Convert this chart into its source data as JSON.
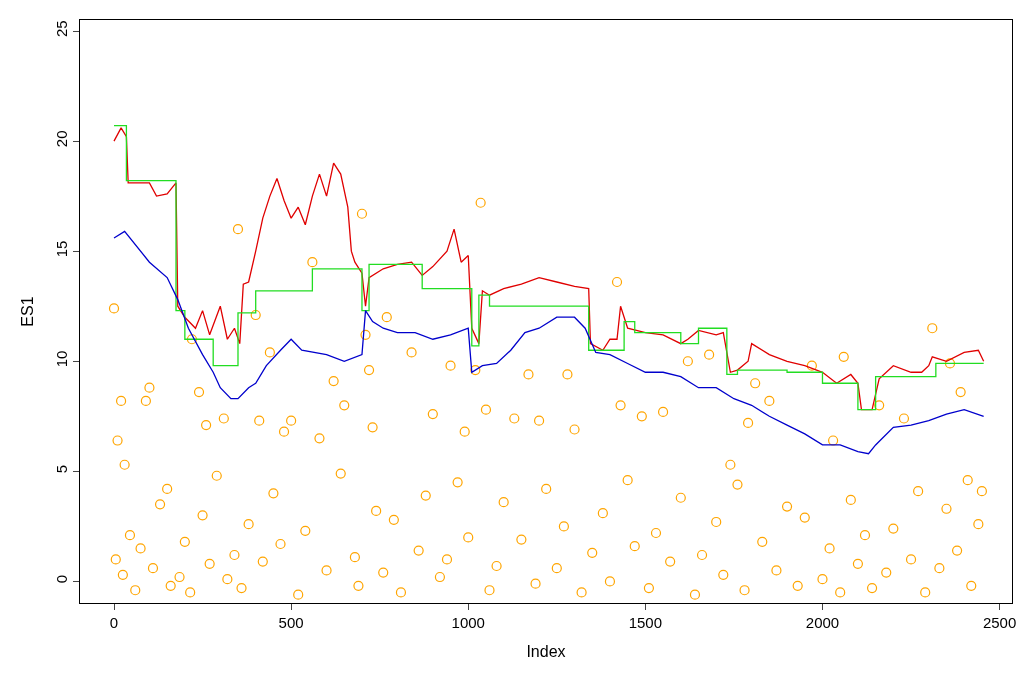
{
  "chart_data": {
    "type": "line",
    "xlabel": "Index",
    "ylabel": "ES1",
    "xlim": [
      -96,
      2535
    ],
    "ylim": [
      -0.98,
      25.5
    ],
    "xticks": [
      0,
      500,
      1000,
      1500,
      2000,
      2500
    ],
    "yticks": [
      0,
      5,
      10,
      15,
      20,
      25
    ],
    "legend": false,
    "series": [
      {
        "type": "scatter",
        "marker": "circle",
        "color": "#ffa500",
        "x": [
          0,
          10,
          20,
          30,
          90,
          100,
          150,
          220,
          240,
          260,
          310,
          350,
          400,
          410,
          440,
          480,
          500,
          560,
          580,
          620,
          650,
          700,
          710,
          720,
          730,
          770,
          840,
          900,
          950,
          990,
          1020,
          1035,
          1050,
          1130,
          1170,
          1200,
          1280,
          1300,
          1420,
          1430,
          1490,
          1550,
          1620,
          1680,
          1740,
          1790,
          1810,
          1850,
          1970,
          2030,
          2060,
          2160,
          2230,
          2310,
          2360,
          2390,
          2410,
          2450,
          5,
          25,
          45,
          60,
          75,
          110,
          130,
          160,
          185,
          200,
          215,
          250,
          270,
          290,
          320,
          340,
          360,
          380,
          420,
          450,
          470,
          520,
          540,
          600,
          640,
          680,
          690,
          740,
          760,
          790,
          810,
          860,
          880,
          920,
          940,
          970,
          1000,
          1060,
          1080,
          1100,
          1150,
          1190,
          1220,
          1250,
          1270,
          1320,
          1350,
          1380,
          1400,
          1450,
          1470,
          1510,
          1530,
          1570,
          1600,
          1640,
          1660,
          1700,
          1720,
          1760,
          1780,
          1830,
          1870,
          1900,
          1930,
          1950,
          2000,
          2020,
          2050,
          2080,
          2100,
          2120,
          2140,
          2180,
          2200,
          2250,
          2270,
          2290,
          2330,
          2350,
          2380,
          2420,
          2440
        ],
        "values": [
          12.4,
          6.4,
          8.2,
          5.3,
          8.2,
          8.8,
          4.2,
          11.0,
          8.6,
          7.1,
          7.4,
          16.0,
          12.1,
          7.3,
          10.4,
          6.8,
          7.3,
          14.5,
          6.5,
          9.1,
          8.0,
          16.7,
          11.2,
          9.6,
          7.0,
          12.0,
          10.4,
          7.6,
          9.8,
          6.8,
          9.6,
          17.2,
          7.8,
          7.4,
          9.4,
          7.3,
          9.4,
          6.9,
          13.6,
          8.0,
          7.5,
          7.7,
          10.0,
          10.3,
          5.3,
          7.2,
          9.0,
          8.2,
          9.8,
          6.4,
          10.2,
          8.0,
          7.4,
          11.5,
          9.9,
          8.6,
          4.6,
          4.1,
          1.0,
          0.3,
          2.1,
          -0.4,
          1.5,
          0.6,
          3.5,
          -0.2,
          0.2,
          1.8,
          -0.5,
          3.0,
          0.8,
          4.8,
          0.1,
          1.2,
          -0.3,
          2.6,
          0.9,
          4.0,
          1.7,
          -0.6,
          2.3,
          0.5,
          4.9,
          1.1,
          -0.2,
          3.2,
          0.4,
          2.8,
          -0.5,
          1.4,
          3.9,
          0.2,
          1.0,
          4.5,
          2.0,
          -0.4,
          0.7,
          3.6,
          1.9,
          -0.1,
          4.2,
          0.6,
          2.5,
          -0.5,
          1.3,
          3.1,
          0.0,
          4.6,
          1.6,
          -0.3,
          2.2,
          0.9,
          3.8,
          -0.6,
          1.2,
          2.7,
          0.3,
          4.4,
          -0.4,
          1.8,
          0.5,
          3.4,
          -0.2,
          2.9,
          0.1,
          1.5,
          -0.5,
          3.7,
          0.8,
          2.1,
          -0.3,
          0.4,
          2.4,
          1.0,
          4.1,
          -0.5,
          0.6,
          3.3,
          1.4,
          -0.2,
          2.6
        ]
      },
      {
        "color": "#e00000",
        "x": [
          0,
          20,
          35,
          40,
          100,
          120,
          150,
          175,
          180,
          200,
          230,
          250,
          270,
          300,
          320,
          340,
          355,
          365,
          380,
          400,
          420,
          440,
          460,
          480,
          500,
          520,
          540,
          560,
          580,
          600,
          620,
          640,
          660,
          670,
          680,
          700,
          710,
          720,
          760,
          800,
          840,
          870,
          900,
          940,
          960,
          980,
          1000,
          1010,
          1030,
          1040,
          1060,
          1100,
          1150,
          1200,
          1250,
          1300,
          1340,
          1345,
          1380,
          1400,
          1420,
          1430,
          1450,
          1500,
          1550,
          1600,
          1620,
          1650,
          1700,
          1720,
          1740,
          1760,
          1790,
          1800,
          1850,
          1900,
          1950,
          2000,
          2040,
          2080,
          2100,
          2110,
          2140,
          2160,
          2200,
          2250,
          2280,
          2300,
          2310,
          2350,
          2400,
          2440,
          2455
        ],
        "values": [
          20.0,
          20.6,
          20.2,
          18.1,
          18.1,
          17.5,
          17.6,
          18.1,
          12.5,
          12.0,
          11.5,
          12.3,
          11.2,
          12.5,
          11.0,
          11.5,
          10.8,
          13.5,
          13.6,
          15.0,
          16.5,
          17.5,
          18.3,
          17.3,
          16.5,
          17.0,
          16.2,
          17.5,
          18.5,
          17.5,
          19.0,
          18.5,
          17.0,
          15.0,
          14.5,
          14.0,
          12.5,
          13.8,
          14.2,
          14.4,
          14.5,
          13.9,
          14.3,
          15.0,
          16.0,
          14.5,
          14.8,
          11.5,
          10.8,
          13.2,
          13.0,
          13.3,
          13.5,
          13.8,
          13.6,
          13.4,
          13.3,
          10.8,
          10.5,
          11.0,
          11.0,
          12.5,
          11.5,
          11.3,
          11.2,
          10.8,
          11.0,
          11.4,
          11.2,
          11.3,
          9.5,
          9.6,
          10.0,
          10.8,
          10.3,
          10.0,
          9.8,
          9.5,
          9.0,
          9.4,
          9.0,
          7.8,
          7.8,
          9.2,
          9.8,
          9.5,
          9.5,
          9.8,
          10.2,
          10.0,
          10.4,
          10.5,
          10.0
        ]
      },
      {
        "type": "step",
        "color": "#22dd22",
        "x": [
          0,
          35,
          175,
          200,
          280,
          350,
          400,
          560,
          700,
          720,
          870,
          1010,
          1030,
          1060,
          1340,
          1440,
          1470,
          1600,
          1650,
          1730,
          1760,
          1900,
          2000,
          2100,
          2150,
          2320,
          2455
        ],
        "values": [
          20.7,
          18.2,
          12.3,
          11.0,
          9.8,
          12.2,
          13.2,
          14.2,
          12.3,
          14.4,
          13.3,
          10.7,
          13.0,
          12.5,
          10.5,
          11.8,
          11.3,
          10.8,
          11.5,
          9.4,
          9.6,
          9.5,
          9.0,
          7.8,
          9.3,
          9.9,
          9.9
        ]
      },
      {
        "color": "#0000cc",
        "x": [
          0,
          30,
          100,
          150,
          180,
          210,
          250,
          280,
          300,
          330,
          350,
          380,
          400,
          430,
          470,
          500,
          530,
          600,
          650,
          700,
          710,
          730,
          760,
          800,
          850,
          900,
          950,
          1000,
          1010,
          1040,
          1080,
          1120,
          1160,
          1200,
          1250,
          1300,
          1330,
          1360,
          1400,
          1450,
          1500,
          1550,
          1600,
          1650,
          1700,
          1750,
          1800,
          1850,
          1900,
          1950,
          2000,
          2050,
          2100,
          2130,
          2150,
          2200,
          2250,
          2300,
          2350,
          2400,
          2455
        ],
        "values": [
          15.6,
          15.9,
          14.5,
          13.8,
          12.8,
          11.5,
          10.3,
          9.5,
          8.8,
          8.3,
          8.3,
          8.8,
          9.0,
          9.8,
          10.5,
          11.0,
          10.5,
          10.3,
          10.0,
          10.3,
          12.3,
          11.8,
          11.5,
          11.3,
          11.3,
          11.0,
          11.2,
          11.5,
          9.5,
          9.8,
          9.9,
          10.5,
          11.3,
          11.5,
          12.0,
          12.0,
          11.5,
          10.4,
          10.3,
          9.9,
          9.5,
          9.5,
          9.3,
          8.8,
          8.8,
          8.3,
          8.0,
          7.5,
          7.1,
          6.7,
          6.2,
          6.2,
          5.9,
          5.8,
          6.2,
          7.0,
          7.1,
          7.3,
          7.6,
          7.8,
          7.5
        ]
      }
    ]
  }
}
